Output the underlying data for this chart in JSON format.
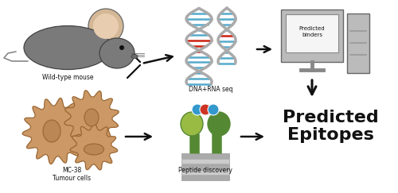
{
  "figsize": [
    5.0,
    2.43
  ],
  "dpi": 100,
  "bg_color": "#ffffff",
  "arrow_color": "#1a1a1a",
  "label_mouse": "Wild-type mouse",
  "label_dna": "DNA+RNA seq",
  "label_pc": "Predicted\nbinders",
  "label_mc38": "MC-38\nTumour cells",
  "label_peptide": "Peptide discovery",
  "label_epitopes": "Predicted\nEpitopes",
  "mouse_body_color": "#7a7a7a",
  "mouse_ear_outer_color": "#d4b896",
  "mouse_ear_inner_color": "#e8cdb0",
  "computer_body_color": "#aaaaaa",
  "computer_screen_color": "#f0f0f0",
  "tumor_fill": "#cc9966",
  "tumor_stroke": "#996633",
  "tumor_cell_fill": "#ddb888",
  "tumor_nucleus_fill": "#bb8855",
  "mhc_green_light": "#99bb44",
  "mhc_green_dark": "#558833",
  "mhc_blue": "#3399cc",
  "mhc_red": "#cc3322",
  "dna_backbone": "#aaaaaa",
  "dna_blue": "#55aacc",
  "dna_red": "#cc2211"
}
